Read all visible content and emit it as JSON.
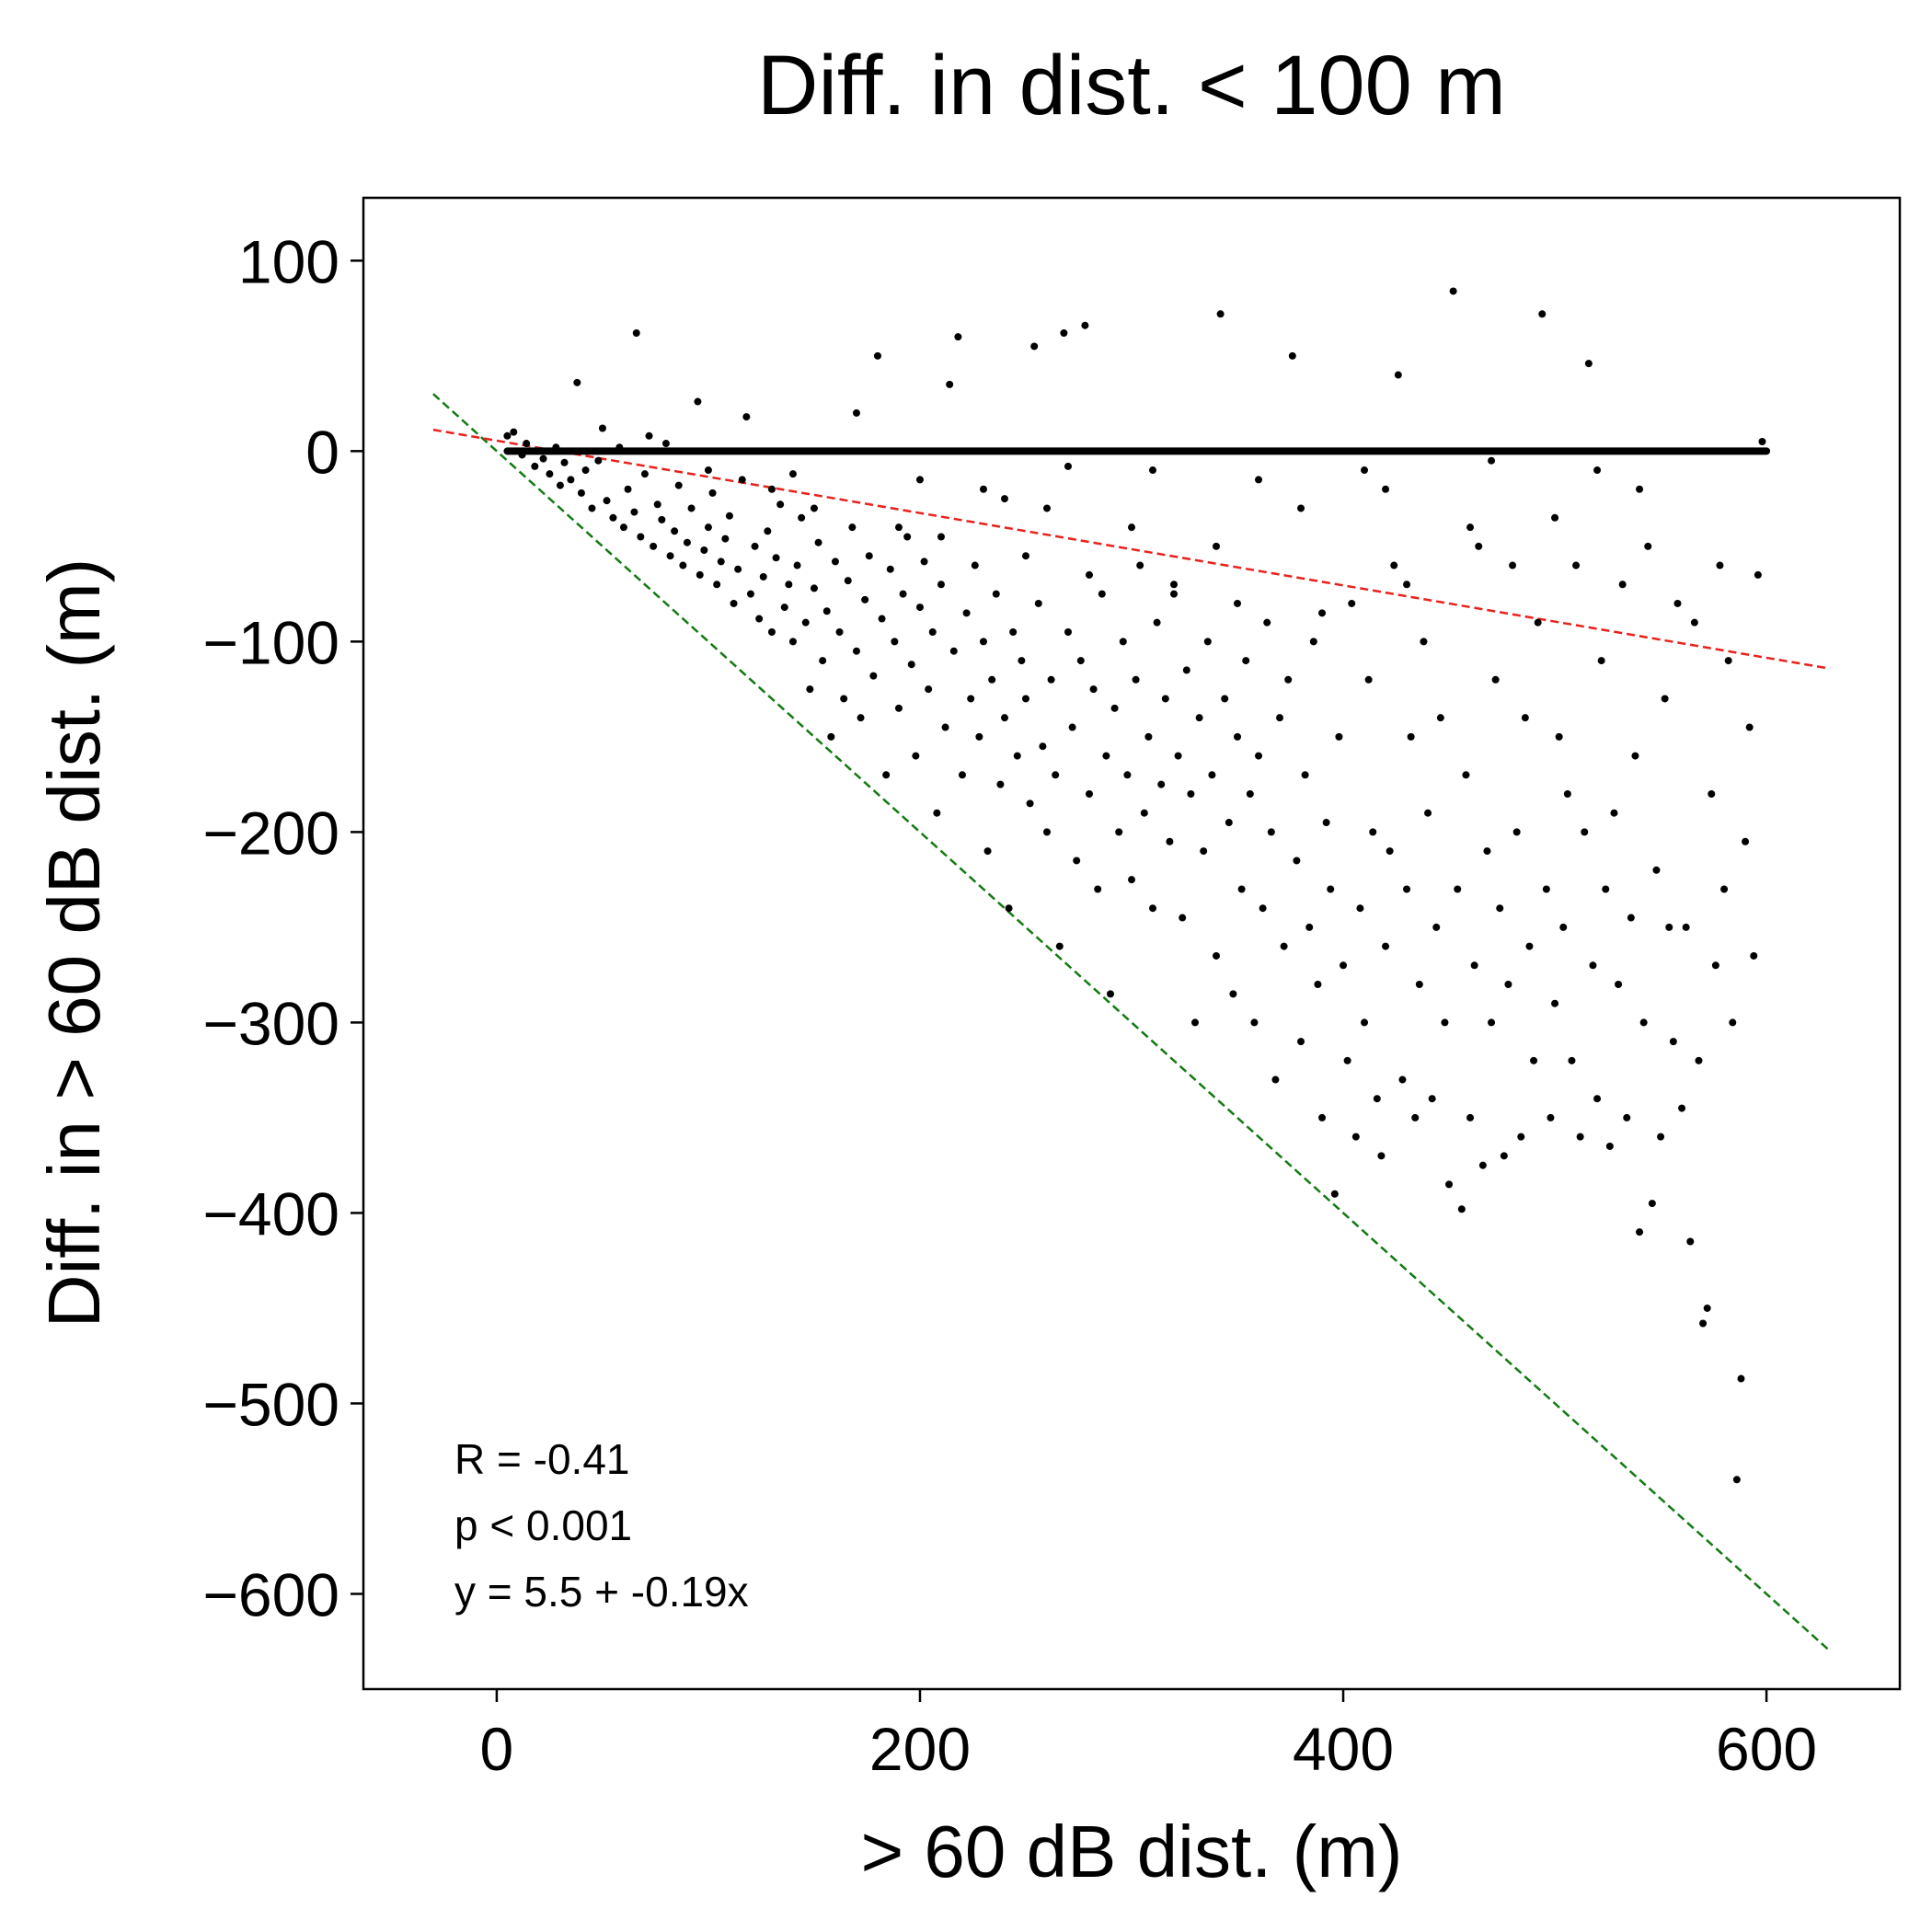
{
  "chart_data": {
    "type": "scatter",
    "title": "Diff. in dist. < 100 m",
    "xlabel": "> 60 dB dist. (m)",
    "ylabel": "Diff. in > 60 dB dist. (m)",
    "xlim": [
      -63,
      663
    ],
    "ylim": [
      -650,
      133
    ],
    "xticks": [
      0,
      200,
      400,
      600
    ],
    "yticks": [
      100,
      0,
      -100,
      -200,
      -300,
      -400,
      -500,
      -600
    ],
    "xtick_labels": [
      "0",
      "200",
      "400",
      "600"
    ],
    "ytick_labels": [
      "100",
      "0",
      "−100",
      "−200",
      "−300",
      "−400",
      "−500",
      "−600"
    ],
    "grid": false,
    "legend": "none",
    "annotations": [
      "R = -0.41",
      "p < 0.001",
      "y = 5.5 + -0.19x"
    ],
    "regression_line": {
      "color": "#e8211c",
      "style": "dashed",
      "intercept": 5.5,
      "slope": -0.19,
      "x_range": [
        -30,
        630
      ]
    },
    "identity_line": {
      "color": "#127a12",
      "style": "dashed",
      "intercept": 0,
      "slope": -1,
      "x_range": [
        -30,
        630
      ]
    },
    "zero_band": {
      "x_range": [
        5,
        600
      ],
      "y": 0
    },
    "points": [
      [
        5,
        8
      ],
      [
        8,
        10
      ],
      [
        12,
        -2
      ],
      [
        14,
        4
      ],
      [
        18,
        -8
      ],
      [
        22,
        -4
      ],
      [
        25,
        -12
      ],
      [
        28,
        2
      ],
      [
        30,
        -18
      ],
      [
        32,
        -6
      ],
      [
        35,
        -15
      ],
      [
        38,
        36
      ],
      [
        40,
        -22
      ],
      [
        42,
        -10
      ],
      [
        45,
        -30
      ],
      [
        48,
        -5
      ],
      [
        50,
        12
      ],
      [
        52,
        -26
      ],
      [
        55,
        -35
      ],
      [
        58,
        2
      ],
      [
        60,
        -40
      ],
      [
        62,
        -20
      ],
      [
        65,
        -32
      ],
      [
        66,
        62
      ],
      [
        68,
        -45
      ],
      [
        70,
        -12
      ],
      [
        72,
        8
      ],
      [
        74,
        -50
      ],
      [
        76,
        -28
      ],
      [
        78,
        -36
      ],
      [
        80,
        4
      ],
      [
        82,
        -55
      ],
      [
        84,
        -42
      ],
      [
        86,
        -18
      ],
      [
        88,
        -60
      ],
      [
        90,
        -48
      ],
      [
        92,
        -30
      ],
      [
        95,
        26
      ],
      [
        96,
        -65
      ],
      [
        98,
        -52
      ],
      [
        100,
        -40
      ],
      [
        102,
        -22
      ],
      [
        104,
        -70
      ],
      [
        106,
        -58
      ],
      [
        108,
        -46
      ],
      [
        110,
        -34
      ],
      [
        112,
        -80
      ],
      [
        114,
        -62
      ],
      [
        116,
        -15
      ],
      [
        118,
        18
      ],
      [
        120,
        -75
      ],
      [
        122,
        -50
      ],
      [
        124,
        -88
      ],
      [
        126,
        -66
      ],
      [
        128,
        -42
      ],
      [
        130,
        -95
      ],
      [
        132,
        -56
      ],
      [
        134,
        -28
      ],
      [
        136,
        -82
      ],
      [
        138,
        -70
      ],
      [
        140,
        -100
      ],
      [
        142,
        -60
      ],
      [
        144,
        -35
      ],
      [
        146,
        -90
      ],
      [
        148,
        -125
      ],
      [
        150,
        -72
      ],
      [
        152,
        -48
      ],
      [
        154,
        -110
      ],
      [
        156,
        -84
      ],
      [
        158,
        -150
      ],
      [
        160,
        -58
      ],
      [
        162,
        -95
      ],
      [
        164,
        -130
      ],
      [
        166,
        -68
      ],
      [
        168,
        -40
      ],
      [
        170,
        -105
      ],
      [
        172,
        -140
      ],
      [
        174,
        -78
      ],
      [
        176,
        -55
      ],
      [
        178,
        -118
      ],
      [
        180,
        50
      ],
      [
        182,
        -88
      ],
      [
        184,
        -170
      ],
      [
        186,
        -62
      ],
      [
        188,
        -100
      ],
      [
        190,
        -135
      ],
      [
        192,
        -75
      ],
      [
        194,
        -45
      ],
      [
        196,
        -112
      ],
      [
        198,
        -160
      ],
      [
        200,
        -82
      ],
      [
        202,
        -58
      ],
      [
        204,
        -125
      ],
      [
        206,
        -95
      ],
      [
        208,
        -190
      ],
      [
        210,
        -70
      ],
      [
        212,
        -145
      ],
      [
        214,
        35
      ],
      [
        216,
        -105
      ],
      [
        218,
        60
      ],
      [
        220,
        -170
      ],
      [
        222,
        -85
      ],
      [
        224,
        -130
      ],
      [
        226,
        -60
      ],
      [
        228,
        -150
      ],
      [
        230,
        -100
      ],
      [
        232,
        -210
      ],
      [
        234,
        -120
      ],
      [
        236,
        -75
      ],
      [
        238,
        -175
      ],
      [
        240,
        -140
      ],
      [
        242,
        -240
      ],
      [
        244,
        -95
      ],
      [
        246,
        -160
      ],
      [
        248,
        -110
      ],
      [
        250,
        -130
      ],
      [
        252,
        -185
      ],
      [
        254,
        55
      ],
      [
        256,
        -80
      ],
      [
        258,
        -155
      ],
      [
        260,
        -200
      ],
      [
        262,
        -120
      ],
      [
        264,
        -170
      ],
      [
        266,
        -260
      ],
      [
        268,
        62
      ],
      [
        270,
        -95
      ],
      [
        272,
        -145
      ],
      [
        274,
        -215
      ],
      [
        276,
        -110
      ],
      [
        278,
        66
      ],
      [
        280,
        -180
      ],
      [
        282,
        -125
      ],
      [
        284,
        -230
      ],
      [
        286,
        -75
      ],
      [
        288,
        -160
      ],
      [
        290,
        -285
      ],
      [
        292,
        -135
      ],
      [
        294,
        -200
      ],
      [
        296,
        -100
      ],
      [
        298,
        -170
      ],
      [
        300,
        -225
      ],
      [
        302,
        -120
      ],
      [
        304,
        -60
      ],
      [
        306,
        -190
      ],
      [
        308,
        -150
      ],
      [
        310,
        -240
      ],
      [
        312,
        -90
      ],
      [
        314,
        -175
      ],
      [
        316,
        -130
      ],
      [
        318,
        -205
      ],
      [
        320,
        -70
      ],
      [
        322,
        -160
      ],
      [
        324,
        -245
      ],
      [
        326,
        -115
      ],
      [
        328,
        -180
      ],
      [
        330,
        -300
      ],
      [
        332,
        -140
      ],
      [
        334,
        -210
      ],
      [
        336,
        -100
      ],
      [
        338,
        -170
      ],
      [
        340,
        -265
      ],
      [
        342,
        72
      ],
      [
        344,
        -130
      ],
      [
        346,
        -195
      ],
      [
        348,
        -285
      ],
      [
        350,
        -150
      ],
      [
        352,
        -230
      ],
      [
        354,
        -110
      ],
      [
        356,
        -180
      ],
      [
        358,
        -300
      ],
      [
        360,
        -160
      ],
      [
        362,
        -240
      ],
      [
        364,
        -90
      ],
      [
        366,
        -200
      ],
      [
        368,
        -330
      ],
      [
        370,
        -140
      ],
      [
        372,
        -260
      ],
      [
        374,
        -120
      ],
      [
        376,
        50
      ],
      [
        378,
        -215
      ],
      [
        380,
        -310
      ],
      [
        382,
        -170
      ],
      [
        384,
        -250
      ],
      [
        386,
        -100
      ],
      [
        388,
        -280
      ],
      [
        390,
        -350
      ],
      [
        392,
        -195
      ],
      [
        394,
        -230
      ],
      [
        396,
        -390
      ],
      [
        398,
        -150
      ],
      [
        400,
        -270
      ],
      [
        402,
        -320
      ],
      [
        404,
        -80
      ],
      [
        406,
        -360
      ],
      [
        408,
        -240
      ],
      [
        410,
        -300
      ],
      [
        412,
        -120
      ],
      [
        414,
        -200
      ],
      [
        416,
        -340
      ],
      [
        418,
        -370
      ],
      [
        420,
        -260
      ],
      [
        422,
        -210
      ],
      [
        424,
        -60
      ],
      [
        426,
        40
      ],
      [
        428,
        -330
      ],
      [
        430,
        -230
      ],
      [
        432,
        -150
      ],
      [
        434,
        -350
      ],
      [
        436,
        -280
      ],
      [
        438,
        -100
      ],
      [
        440,
        -190
      ],
      [
        442,
        -340
      ],
      [
        444,
        -250
      ],
      [
        446,
        -140
      ],
      [
        448,
        -300
      ],
      [
        450,
        -385
      ],
      [
        452,
        84
      ],
      [
        454,
        -230
      ],
      [
        456,
        -398
      ],
      [
        458,
        -170
      ],
      [
        460,
        -350
      ],
      [
        462,
        -270
      ],
      [
        464,
        -50
      ],
      [
        466,
        -375
      ],
      [
        468,
        -210
      ],
      [
        470,
        -300
      ],
      [
        472,
        -120
      ],
      [
        474,
        -240
      ],
      [
        476,
        -370
      ],
      [
        478,
        -280
      ],
      [
        480,
        -60
      ],
      [
        482,
        -200
      ],
      [
        484,
        -360
      ],
      [
        486,
        -140
      ],
      [
        488,
        -260
      ],
      [
        490,
        -320
      ],
      [
        492,
        -90
      ],
      [
        494,
        72
      ],
      [
        496,
        -230
      ],
      [
        498,
        -350
      ],
      [
        500,
        -290
      ],
      [
        502,
        -150
      ],
      [
        504,
        -250
      ],
      [
        506,
        -180
      ],
      [
        508,
        -320
      ],
      [
        510,
        -60
      ],
      [
        512,
        -360
      ],
      [
        514,
        -200
      ],
      [
        516,
        46
      ],
      [
        518,
        -270
      ],
      [
        520,
        -340
      ],
      [
        522,
        -110
      ],
      [
        524,
        -230
      ],
      [
        526,
        -365
      ],
      [
        528,
        -190
      ],
      [
        530,
        -280
      ],
      [
        532,
        -70
      ],
      [
        534,
        -350
      ],
      [
        536,
        -245
      ],
      [
        538,
        -160
      ],
      [
        540,
        -410
      ],
      [
        542,
        -300
      ],
      [
        544,
        -50
      ],
      [
        546,
        -395
      ],
      [
        548,
        -220
      ],
      [
        550,
        -360
      ],
      [
        552,
        -130
      ],
      [
        554,
        -250
      ],
      [
        556,
        -310
      ],
      [
        558,
        -80
      ],
      [
        560,
        -345
      ],
      [
        562,
        -250
      ],
      [
        564,
        -415
      ],
      [
        566,
        -90
      ],
      [
        568,
        -320
      ],
      [
        570,
        -458
      ],
      [
        572,
        -450
      ],
      [
        574,
        -180
      ],
      [
        576,
        -270
      ],
      [
        578,
        -60
      ],
      [
        580,
        -230
      ],
      [
        582,
        -110
      ],
      [
        584,
        -300
      ],
      [
        586,
        -540
      ],
      [
        588,
        -487
      ],
      [
        590,
        -205
      ],
      [
        592,
        -145
      ],
      [
        594,
        -265
      ],
      [
        596,
        -65
      ],
      [
        598,
        5
      ],
      [
        170,
        20
      ],
      [
        230,
        -20
      ],
      [
        260,
        -30
      ],
      [
        300,
        -40
      ],
      [
        340,
        -50
      ],
      [
        380,
        -30
      ],
      [
        420,
        -20
      ],
      [
        460,
        -40
      ],
      [
        500,
        -35
      ],
      [
        540,
        -20
      ],
      [
        130,
        -20
      ],
      [
        150,
        -30
      ],
      [
        190,
        -40
      ],
      [
        210,
        -45
      ],
      [
        250,
        -55
      ],
      [
        280,
        -65
      ],
      [
        320,
        -75
      ],
      [
        350,
        -80
      ],
      [
        390,
        -85
      ],
      [
        430,
        -70
      ],
      [
        100,
        -10
      ],
      [
        140,
        -12
      ],
      [
        200,
        -15
      ],
      [
        240,
        -25
      ],
      [
        270,
        -8
      ],
      [
        310,
        -10
      ],
      [
        360,
        -15
      ],
      [
        410,
        -10
      ],
      [
        470,
        -5
      ],
      [
        520,
        -10
      ]
    ]
  }
}
